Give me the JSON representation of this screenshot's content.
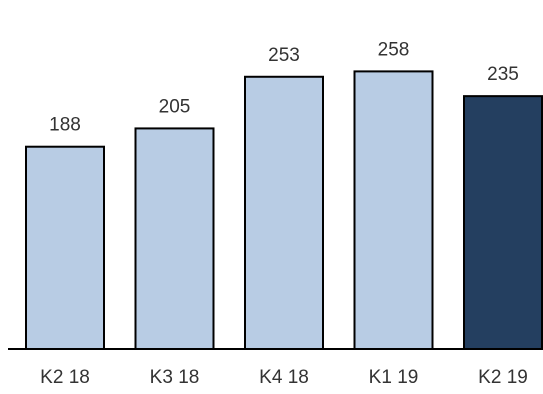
{
  "chart_data": {
    "type": "bar",
    "categories": [
      "K2 18",
      "K3 18",
      "K4 18",
      "K1 19",
      "K2 19"
    ],
    "values": [
      188,
      205,
      253,
      258,
      235
    ],
    "value_labels": [
      "188",
      "205",
      "253",
      "258",
      "235"
    ],
    "title": "",
    "xlabel": "",
    "ylabel": "",
    "ylim": [
      0,
      300
    ],
    "grid": false,
    "legend": "none",
    "colors": {
      "default_bar": "#b8cce4",
      "highlight_bar": "#243f60",
      "bar_stroke": "#000000",
      "axis": "#000000",
      "text": "#333333"
    },
    "highlight_index": 4
  }
}
